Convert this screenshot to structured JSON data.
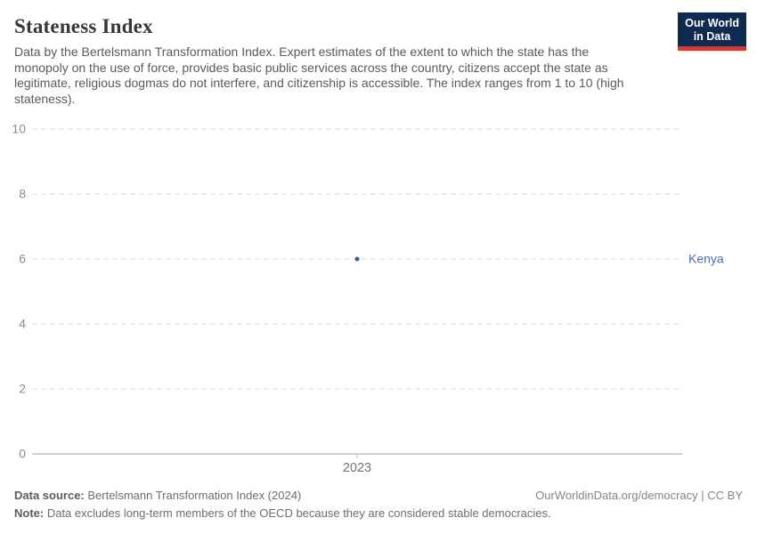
{
  "header": {
    "title": "Stateness Index",
    "subtitle": "Data by the Bertelsmann Transformation Index. Expert estimates of the extent to which the state has the monopoly on the use of force, provides basic public services across the country, citizens accept the state as legitimate, religious dogmas do not interfere, and citizenship is accessible. The index ranges from 1 to 10 (high stateness).",
    "subtitle_lines": [
      "Data by the Bertelsmann Transformation Index. Expert estimates of the extent to which the state has the",
      "monopoly on the use of force, provides basic public services across the country, citizens accept the state as",
      "legitimate, religious dogmas do not interfere, and citizenship is accessible. The index ranges from 1 to 10 (high",
      "stateness)."
    ]
  },
  "logo": {
    "line1": "Our World",
    "line2": "in Data",
    "bg_color": "#0d2a52",
    "bar_color": "#cc3b34",
    "text_color": "#ffffff"
  },
  "chart_data": {
    "type": "scatter",
    "title": "Stateness Index",
    "x": [
      2023
    ],
    "x_tick_labels": [
      "2023"
    ],
    "series": [
      {
        "name": "Kenya",
        "x": [
          2023
        ],
        "y": [
          6
        ],
        "color": "#3b5ca8",
        "label_color": "#4e6fae"
      }
    ],
    "y_ticks": [
      0,
      2,
      4,
      6,
      8,
      10
    ],
    "ylim": [
      0,
      10
    ],
    "xlabel": "",
    "ylabel": "",
    "grid": "horizontal-dashed",
    "legend_position": "right-of-point",
    "grid_color": "#d9d9d9",
    "axis_color": "#a3a3a3",
    "tick_label_color": "#8b8b8b",
    "x_tick_label_color": "#757575"
  },
  "footer": {
    "source_label": "Data source:",
    "source_text": " Bertelsmann Transformation Index (2024)",
    "rights": "OurWorldinData.org/democracy | CC BY",
    "note_label": "Note:",
    "note_text": " Data excludes long-term members of the OECD because they are considered stable democracies."
  }
}
